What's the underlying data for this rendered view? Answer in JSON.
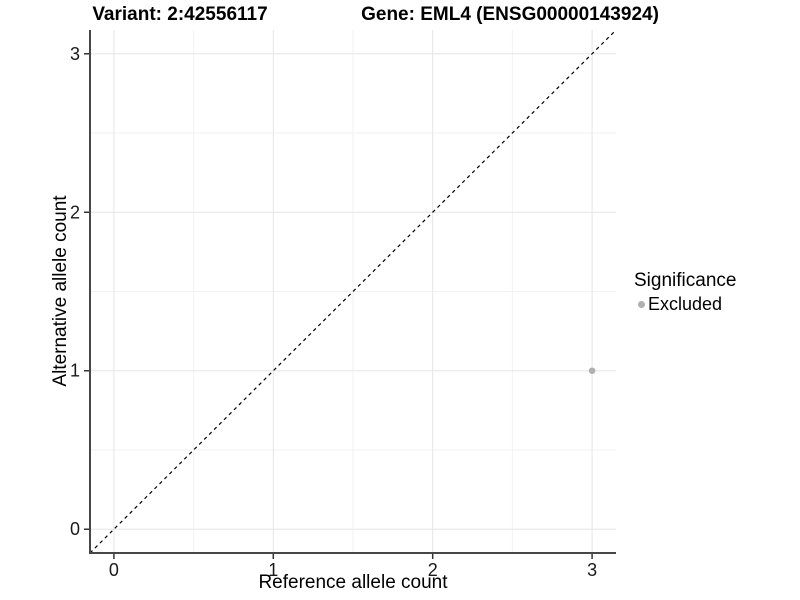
{
  "titles": {
    "variant": "Variant: 2:42556117",
    "gene": "Gene: EML4 (ENSG00000143924)"
  },
  "axes": {
    "x": {
      "label": "Reference allele count",
      "tick_labels": [
        "0",
        "1",
        "2",
        "3"
      ]
    },
    "y": {
      "label": "Alternative allele count",
      "tick_labels": [
        "0",
        "1",
        "2",
        "3"
      ]
    }
  },
  "legend": {
    "title": "Significance",
    "items": [
      {
        "label": "Excluded",
        "color": "#b0b0b0"
      }
    ]
  },
  "colors": {
    "background": "#ffffff",
    "grid_major": "#e5e5e5",
    "grid_minor": "#f2f2f2",
    "axis_line": "#474747",
    "tick_mark": "#333333",
    "tick_label": "#1a1a1a",
    "point": "#b0b0b0",
    "reference_line": "#000000"
  },
  "chart_data": {
    "type": "scatter",
    "title": "Variant: 2:42556117 — Gene: EML4 (ENSG00000143924)",
    "xlabel": "Reference allele count",
    "ylabel": "Alternative allele count",
    "xlim": [
      -0.15,
      3.15
    ],
    "ylim": [
      -0.15,
      3.15
    ],
    "xticks": [
      0,
      1,
      2,
      3
    ],
    "yticks": [
      0,
      1,
      2,
      3
    ],
    "grid": true,
    "legend_position": "right",
    "series": [
      {
        "name": "Excluded",
        "color": "#b0b0b0",
        "points": [
          {
            "x": 3,
            "y": 1
          }
        ]
      }
    ],
    "reference_line": {
      "slope": 1,
      "intercept": 0,
      "style": "dashed",
      "color": "#000000"
    }
  }
}
